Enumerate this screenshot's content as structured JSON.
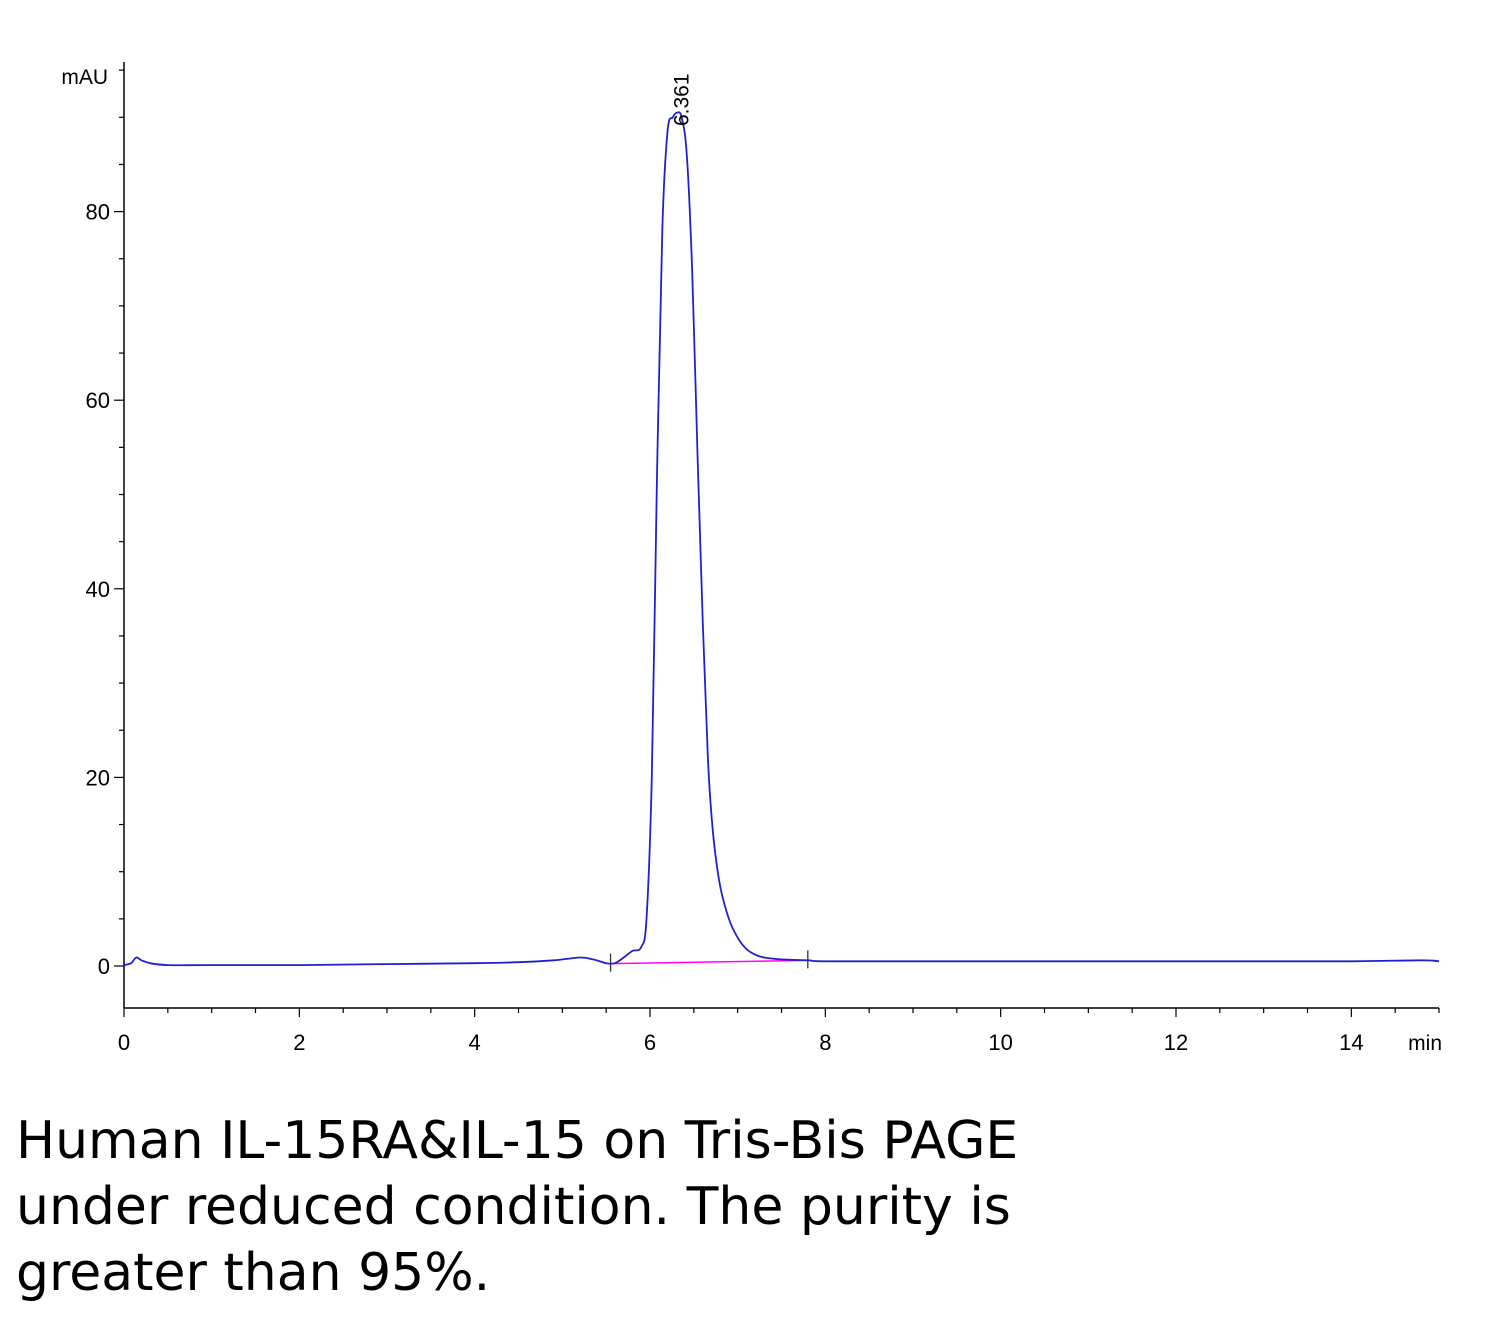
{
  "chart_data": {
    "type": "line",
    "y_unit": "mAU",
    "x_unit": "min",
    "xlim": [
      0,
      15
    ],
    "ylim": [
      -4.5,
      96
    ],
    "x_ticks": [
      0,
      2,
      4,
      6,
      8,
      10,
      12,
      14
    ],
    "y_ticks": [
      0,
      20,
      40,
      60,
      80
    ],
    "grid": false,
    "legend": "none",
    "series": [
      {
        "color": "#2020d0",
        "x": [
          0,
          0.08,
          0.14,
          0.2,
          0.3,
          0.5,
          1,
          2,
          3,
          4,
          4.5,
          4.9,
          5.2,
          5.35,
          5.5,
          5.6,
          5.7,
          5.8,
          5.9,
          5.96,
          6.02,
          6.08,
          6.14,
          6.2,
          6.26,
          6.31,
          6.36,
          6.42,
          6.48,
          6.54,
          6.6,
          6.66,
          6.72,
          6.8,
          6.9,
          7.0,
          7.1,
          7.2,
          7.3,
          7.5,
          7.8,
          8,
          9,
          10,
          11,
          12,
          13,
          14,
          14.8,
          15
        ],
        "y": [
          0.1,
          0.3,
          0.9,
          0.6,
          0.3,
          0.1,
          0.1,
          0.1,
          0.2,
          0.3,
          0.4,
          0.6,
          0.9,
          0.7,
          0.3,
          0.3,
          0.9,
          1.6,
          2.0,
          5.0,
          20.0,
          52.0,
          78.0,
          88.5,
          90.0,
          90.5,
          90.0,
          86.0,
          74.0,
          55.0,
          37.0,
          22.0,
          14.0,
          8.5,
          5.0,
          3.0,
          1.8,
          1.2,
          0.9,
          0.7,
          0.6,
          0.5,
          0.5,
          0.5,
          0.5,
          0.5,
          0.5,
          0.5,
          0.6,
          0.5
        ]
      }
    ],
    "baseline": {
      "color": "#ff00ff",
      "x": [
        5.55,
        7.8
      ],
      "y": [
        0.25,
        0.6
      ]
    },
    "peak_marker_x": [
      5.55,
      7.8
    ],
    "annotations": [
      {
        "x": 6.361,
        "text": "6.361"
      }
    ]
  },
  "caption": "Human IL-15RA&IL-15 on Tris-Bis PAGE under reduced condition. The purity is greater than 95%."
}
